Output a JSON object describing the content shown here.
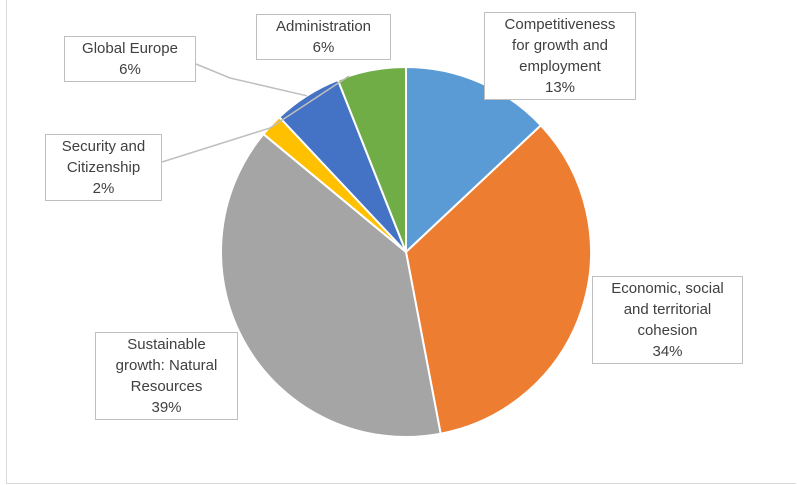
{
  "chart_data": {
    "type": "pie",
    "title": "",
    "start_angle_deg": 0,
    "direction": "clockwise",
    "slices": [
      {
        "label": "Competitiveness\nfor growth and\nemployment",
        "value": 13,
        "value_label": "13%",
        "color": "#5B9BD5"
      },
      {
        "label": "Economic, social\nand territorial\ncohesion",
        "value": 34,
        "value_label": "34%",
        "color": "#ED7D31"
      },
      {
        "label": "Sustainable\ngrowth: Natural\nResources",
        "value": 39,
        "value_label": "39%",
        "color": "#A5A5A5"
      },
      {
        "label": "Security and\nCitizenship",
        "value": 2,
        "value_label": "2%",
        "color": "#FFC000"
      },
      {
        "label": "Global Europe",
        "value": 6,
        "value_label": "6%",
        "color": "#4472C4"
      },
      {
        "label": "Administration",
        "value": 6,
        "value_label": "6%",
        "color": "#70AD47"
      }
    ]
  }
}
